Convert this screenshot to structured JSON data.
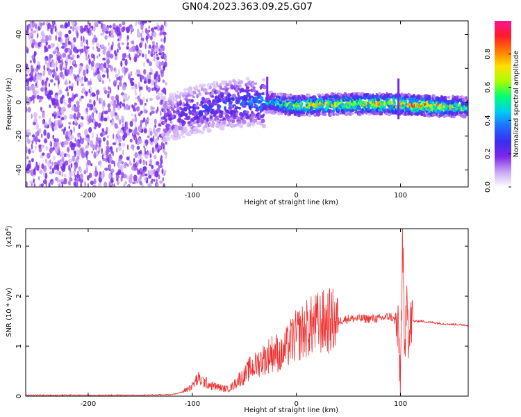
{
  "title": "GN04.2023.363.09.25.G07",
  "chart_data": [
    {
      "type": "heatmap",
      "xlabel": "Height of straight line (km)",
      "ylabel": "Frequency (Hz)",
      "xlim": [
        -260,
        165
      ],
      "ylim": [
        -50,
        48
      ],
      "x_ticks": [
        -200,
        -100,
        0,
        100
      ],
      "y_ticks": [
        -40,
        -20,
        0,
        20,
        40
      ],
      "colorbar": {
        "label": "Normalized spectral amplitude",
        "range": [
          0,
          1
        ],
        "ticks": [
          0.0,
          0.2,
          0.4,
          0.6,
          0.8
        ],
        "tick_labels": [
          "0.0",
          "0.2",
          "0.4",
          "0.6",
          "0.8"
        ],
        "colors": [
          "#ffffff",
          "#c9a6f5",
          "#7f28e8",
          "#3a2cf0",
          "#1f6cff",
          "#00d0f0",
          "#00ff70",
          "#a8ff00",
          "#ffdf00",
          "#ff7a00",
          "#ff1a2a",
          "#ff1493"
        ]
      },
      "ridge": [
        {
          "x": -125,
          "f": -10,
          "amp": 0.25
        },
        {
          "x": -100,
          "f": -5,
          "amp": 0.3
        },
        {
          "x": -75,
          "f": -2,
          "amp": 0.35
        },
        {
          "x": -50,
          "f": 0,
          "amp": 0.4
        },
        {
          "x": -30,
          "f": 0,
          "amp": 0.45
        },
        {
          "x": 0,
          "f": -2,
          "amp": 0.75
        },
        {
          "x": 50,
          "f": -1,
          "amp": 0.8
        },
        {
          "x": 95,
          "f": -1,
          "amp": 0.85
        },
        {
          "x": 120,
          "f": -2,
          "amp": 0.95
        },
        {
          "x": 165,
          "f": -3,
          "amp": 0.6
        }
      ]
    },
    {
      "type": "line",
      "xlabel": "Height of straight line (km)",
      "ylabel": "SNR (10 * v/v)",
      "scale_label": "(x10",
      "scale_exp": "4",
      "scale_close": ")",
      "xlim": [
        -260,
        165
      ],
      "ylim": [
        0,
        3.35
      ],
      "x_ticks": [
        -200,
        -100,
        0,
        100
      ],
      "y_ticks": [
        0,
        1,
        2,
        3
      ],
      "color": "#ee3333",
      "series": [
        {
          "x": [
            -260,
            -200,
            -150,
            -120,
            -110,
            -100,
            -95,
            -90,
            -85,
            -80,
            -75,
            -70,
            -65,
            -60,
            -55,
            -50,
            -45,
            -40,
            -35,
            -30,
            -25,
            -20,
            -15,
            -10,
            -5,
            0,
            10,
            20,
            30,
            40,
            50,
            60,
            70,
            80,
            90,
            95,
            98,
            100,
            102,
            104,
            106,
            108,
            110,
            120,
            140,
            165
          ],
          "y": [
            0.02,
            0.02,
            0.02,
            0.03,
            0.08,
            0.2,
            0.35,
            0.3,
            0.25,
            0.2,
            0.18,
            0.15,
            0.15,
            0.22,
            0.35,
            0.4,
            0.55,
            0.6,
            0.7,
            0.75,
            0.85,
            0.9,
            0.8,
            0.95,
            1.1,
            1.2,
            1.35,
            1.45,
            1.5,
            1.5,
            1.55,
            1.55,
            1.55,
            1.55,
            1.6,
            1.5,
            1.2,
            0.3,
            3.2,
            0.5,
            2.6,
            0.9,
            1.5,
            1.5,
            1.45,
            1.42
          ]
        }
      ]
    }
  ]
}
